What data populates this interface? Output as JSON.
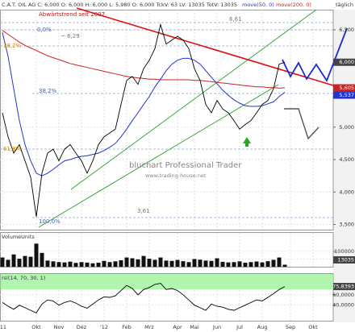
{
  "header": {
    "title": "C.A.T. OIL AG C: 6,000 O: 6,000 H: 6,000 L: 5,980 O: 6,000 TckV: 63 LV: 13035 TotV: 13035",
    "interval": "täglich"
  },
  "chart_data": [
    {
      "type": "line",
      "categories": [
        "'11",
        null,
        null,
        null,
        null,
        null,
        "Okt",
        null,
        null,
        null,
        "Nov",
        null,
        null,
        null,
        "Dez",
        null,
        null,
        null,
        "'12",
        null,
        null,
        null,
        "Feb",
        null,
        null,
        null,
        "Mrz",
        null,
        null,
        null,
        null,
        "Apr",
        null,
        null,
        "Mai",
        null,
        null,
        null,
        "Jun",
        null,
        null,
        null,
        "Jul",
        null,
        null,
        null,
        "Aug",
        null,
        null,
        null,
        null,
        "Sep",
        null,
        null,
        null,
        "Okt",
        null,
        null,
        null
      ],
      "series": [
        {
          "color": "#000000",
          "last_label": "6,000",
          "values": [
            5.22,
            4.85,
            4.6,
            4.73,
            4.48,
            4.23,
            3.62,
            4.29,
            4.6,
            4.66,
            4.48,
            4.66,
            4.73,
            4.6,
            4.48,
            4.29,
            4.48,
            4.73,
            4.85,
            4.91,
            4.97,
            5.35,
            5.72,
            5.78,
            5.66,
            5.9,
            6.03,
            6.21,
            6.58,
            6.28,
            6.34,
            6.4,
            6.34,
            6.21,
            5.9,
            5.72,
            5.35,
            5.22,
            5.41,
            5.28,
            5.22,
            5.1,
            4.97,
            5.04,
            5.1,
            5.22,
            5.35,
            5.41,
            5.59,
            5.97,
            6.0,
            null,
            null,
            null,
            null,
            null,
            null,
            null,
            null
          ]
        },
        {
          "name": "move(50, 0)",
          "color": "#2233cc",
          "last_label": "5,537",
          "values": [
            6.46,
            6.09,
            5.59,
            5.1,
            4.73,
            4.48,
            4.29,
            4.25,
            4.29,
            4.35,
            4.42,
            4.48,
            4.5,
            4.53,
            4.55,
            4.56,
            4.58,
            4.6,
            4.64,
            4.69,
            4.75,
            4.85,
            4.97,
            5.1,
            5.22,
            5.35,
            5.47,
            5.62,
            5.74,
            5.87,
            5.97,
            6.03,
            6.06,
            6.06,
            6.03,
            5.97,
            5.87,
            5.77,
            5.67,
            5.57,
            5.49,
            5.42,
            5.37,
            5.33,
            5.32,
            5.32,
            5.33,
            5.36,
            5.39,
            5.47,
            5.537,
            null,
            null,
            null,
            null,
            null,
            null,
            null,
            null
          ]
        },
        {
          "name": "move(200, 0)",
          "color": "#cc2222",
          "last_label": "5,605",
          "values": [
            6.49,
            6.43,
            6.37,
            6.31,
            6.26,
            6.22,
            6.18,
            6.14,
            6.1,
            6.07,
            6.04,
            6.01,
            5.98,
            5.96,
            5.94,
            5.92,
            5.9,
            5.88,
            5.86,
            5.84,
            5.82,
            5.8,
            5.78,
            5.77,
            5.76,
            5.75,
            5.74,
            5.74,
            5.73,
            5.73,
            5.73,
            5.73,
            5.73,
            5.73,
            5.72,
            5.72,
            5.71,
            5.7,
            5.69,
            5.68,
            5.67,
            5.66,
            5.65,
            5.64,
            5.63,
            5.62,
            5.62,
            5.61,
            5.61,
            5.6,
            5.605,
            null,
            null,
            null,
            null,
            null,
            null,
            null,
            null
          ]
        }
      ],
      "annotations": [
        "Abwärtstrend seit 2007",
        "0,0%",
        "~ 6,29",
        "6,61",
        "38,2%",
        "38,2%",
        "61,8%",
        "100,0%",
        "3,61",
        "bluchart Professional Trader",
        "www.trading-house.net"
      ],
      "ylim": [
        3.42,
        6.81
      ],
      "yticks": [
        {
          "value": 3.5,
          "label": "3,500"
        },
        {
          "value": 4,
          "label": "4,000"
        },
        {
          "value": 4.5,
          "label": "4,500"
        },
        {
          "value": 5,
          "label": "5,000"
        },
        {
          "value": 6.5,
          "label": "6,500"
        }
      ],
      "grid": true
    },
    {
      "type": "bar",
      "title": "VolumeUnits",
      "color": "#111111",
      "values": [
        60000,
        45000,
        80000,
        52000,
        70000,
        65000,
        150000,
        90000,
        40000,
        35000,
        30000,
        28000,
        33000,
        25000,
        30000,
        27000,
        22000,
        26000,
        38000,
        30000,
        35000,
        42000,
        60000,
        55000,
        48000,
        70000,
        52000,
        45000,
        60000,
        40000,
        38000,
        44000,
        36000,
        30000,
        50000,
        46000,
        40000,
        38000,
        55000,
        32000,
        28000,
        30000,
        35000,
        26000,
        30000,
        34000,
        28000,
        36000,
        45000,
        60000,
        13035,
        null,
        null,
        null,
        null,
        null,
        null,
        null,
        null
      ],
      "ylim": [
        0,
        220000
      ],
      "yticks": [
        50000,
        100000
      ]
    },
    {
      "type": "line",
      "title": "rsi(14, 70, 30, 1)",
      "color": "#000000",
      "overbought": 70,
      "last_label": "75,8393",
      "values": [
        45,
        38,
        32,
        40,
        35,
        30,
        25,
        42,
        50,
        48,
        40,
        45,
        48,
        44,
        38,
        34,
        42,
        50,
        56,
        55,
        58,
        68,
        78,
        72,
        60,
        70,
        74,
        80,
        82,
        70,
        72,
        68,
        60,
        50,
        40,
        35,
        30,
        42,
        38,
        36,
        32,
        30,
        35,
        40,
        45,
        50,
        48,
        55,
        62,
        70,
        75.8393,
        null,
        null,
        null,
        null,
        null,
        null,
        null,
        null
      ],
      "ylim": [
        10,
        100
      ],
      "yticks": [
        {
          "value": 40,
          "label": "40,0000"
        },
        {
          "value": 60,
          "label": "60,0000"
        }
      ]
    }
  ]
}
